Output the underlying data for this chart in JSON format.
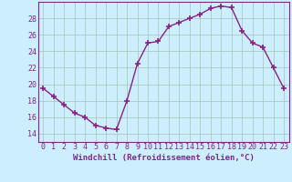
{
  "x": [
    0,
    1,
    2,
    3,
    4,
    5,
    6,
    7,
    8,
    9,
    10,
    11,
    12,
    13,
    14,
    15,
    16,
    17,
    18,
    19,
    20,
    21,
    22,
    23
  ],
  "y": [
    19.5,
    18.5,
    17.5,
    16.5,
    16.0,
    15.0,
    14.7,
    14.5,
    18.0,
    22.5,
    25.0,
    25.2,
    27.0,
    27.5,
    28.0,
    28.5,
    29.2,
    29.5,
    29.3,
    26.5,
    25.0,
    24.5,
    22.0,
    19.5
  ],
  "line_color": "#882288",
  "marker_color": "#882288",
  "bg_color": "#cceeff",
  "grid_color": "#aaccbb",
  "xlabel": "Windchill (Refroidissement éolien,°C)",
  "xlim": [
    -0.5,
    23.5
  ],
  "ylim": [
    13.0,
    30.0
  ],
  "yticks": [
    14,
    16,
    18,
    20,
    22,
    24,
    26,
    28
  ],
  "xticks": [
    0,
    1,
    2,
    3,
    4,
    5,
    6,
    7,
    8,
    9,
    10,
    11,
    12,
    13,
    14,
    15,
    16,
    17,
    18,
    19,
    20,
    21,
    22,
    23
  ],
  "xlabel_fontsize": 6.5,
  "tick_fontsize": 6.0,
  "marker_size": 4.0,
  "line_width": 1.0
}
